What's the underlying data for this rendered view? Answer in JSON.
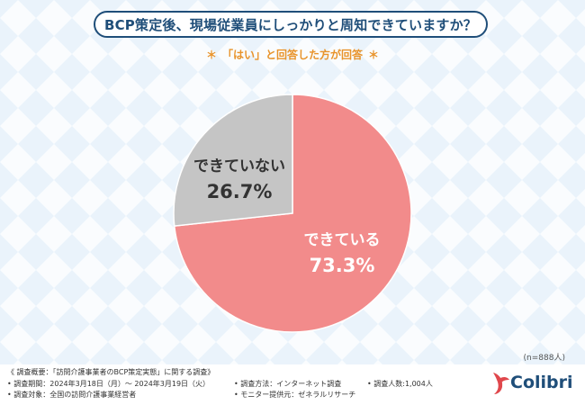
{
  "title": "BCP策定後、現場従業員にしっかりと周知できていますか？",
  "subtitle": {
    "star_left": "＊",
    "text": "「はい」と回答した方が回答",
    "star_right": "＊"
  },
  "sample_size": "(n=888人)",
  "chart_data": {
    "type": "pie",
    "slices": [
      {
        "label": "できている",
        "value": 73.3,
        "value_label": "73.3%",
        "color": "#f28b8b"
      },
      {
        "label": "できていない",
        "value": 26.7,
        "value_label": "26.7%",
        "color": "#c5c5c5"
      }
    ]
  },
  "footer": {
    "line1": "《 調査概要：「訪問介護事業者のBCP策定実態」に関する調査》",
    "line2": "• 調査期間：2024年3月18日（月）～ 2024年3月19日（火）",
    "line3": "• 調査対象：全国の訪問介護事業経営者",
    "method": "• 調査方法：インターネット調査",
    "provider": "• モニター提供元：ゼネラルリサーチ",
    "respondents": "• 調査人数:1,004人"
  },
  "logo": {
    "text": "Colibri",
    "color": "#1f4e79",
    "accent": "#e0474c"
  }
}
